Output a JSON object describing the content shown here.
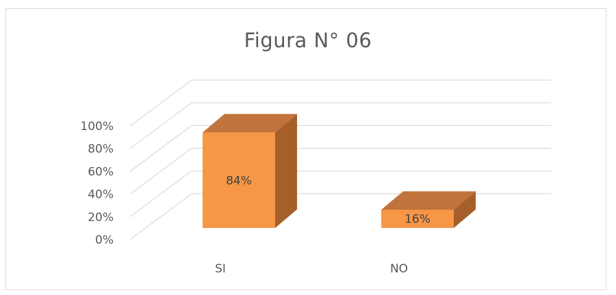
{
  "chart_data": {
    "type": "bar",
    "title": "Figura N° 06",
    "xlabel": "",
    "ylabel": "",
    "categories": [
      "SI",
      "NO"
    ],
    "values": [
      84,
      16
    ],
    "value_labels": [
      "84%",
      "16%"
    ],
    "yticks": [
      "0%",
      "20%",
      "40%",
      "60%",
      "80%",
      "100%"
    ],
    "ylim": [
      0,
      100
    ],
    "grid": true,
    "legend": "none",
    "style": "3d-column",
    "colors": {
      "front": "#f79646",
      "top": "#c0733a",
      "side": "#a55f2b",
      "grid": "#d9d9d9",
      "text": "#595959"
    }
  }
}
